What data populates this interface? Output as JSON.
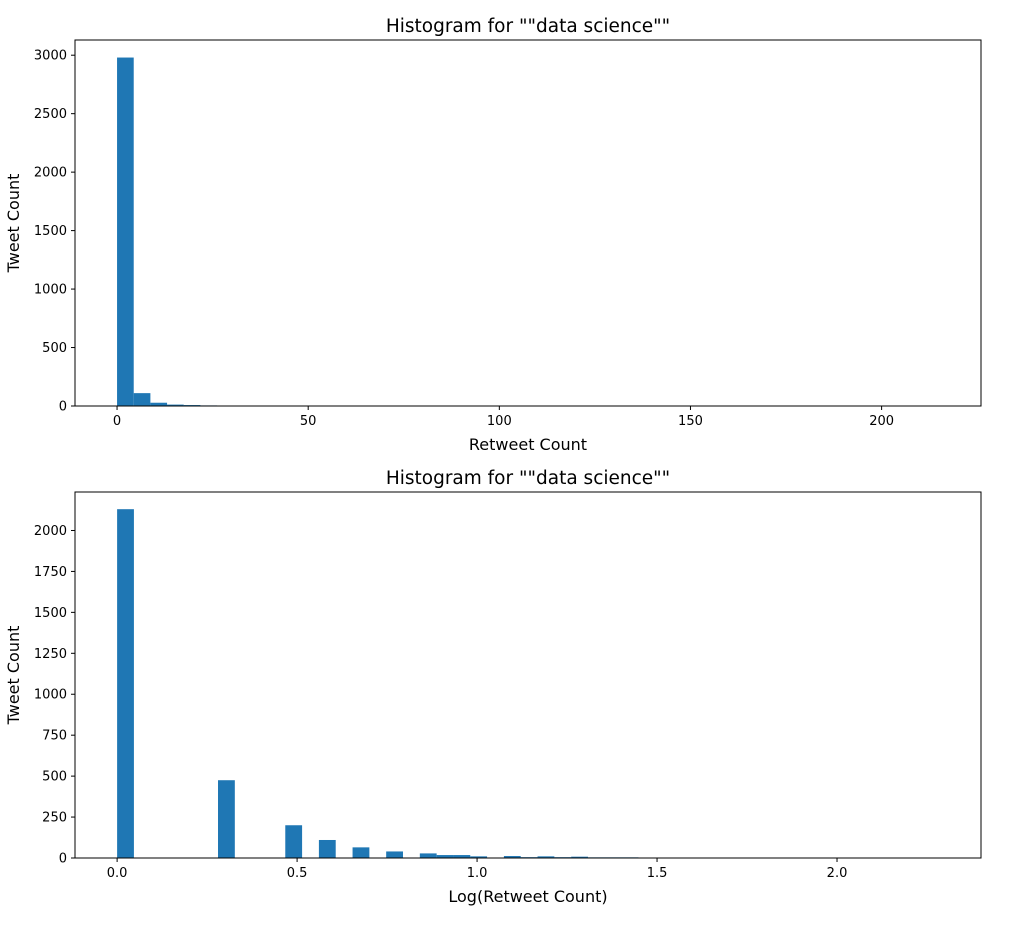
{
  "chart_data": [
    {
      "type": "bar",
      "title": "Histogram for \"\"data science\"\"",
      "xlabel": "Retweet Count",
      "ylabel": "Tweet Count",
      "xlim": [
        -11,
        226
      ],
      "ylim": [
        0,
        3130
      ],
      "xticks": [
        0,
        50,
        100,
        150,
        200
      ],
      "yticks": [
        0,
        500,
        1000,
        1500,
        2000,
        2500,
        3000
      ],
      "bin_width": 4.36,
      "grid": false,
      "color": "#1f77b4",
      "bars": [
        {
          "x0": 0,
          "value": 2980
        },
        {
          "x0": 4.36,
          "value": 110
        },
        {
          "x0": 8.72,
          "value": 28
        },
        {
          "x0": 13.08,
          "value": 12
        },
        {
          "x0": 17.44,
          "value": 8
        },
        {
          "x0": 21.8,
          "value": 5
        },
        {
          "x0": 26.16,
          "value": 3
        },
        {
          "x0": 30.52,
          "value": 2
        },
        {
          "x0": 34.88,
          "value": 1
        },
        {
          "x0": 39.24,
          "value": 1
        },
        {
          "x0": 43.6,
          "value": 1
        },
        {
          "x0": 61.04,
          "value": 1
        },
        {
          "x0": 213.64,
          "value": 1
        }
      ]
    },
    {
      "type": "bar",
      "title": "Histogram for \"\"data science\"\"",
      "xlabel": "Log(Retweet Count)",
      "ylabel": "Tweet Count",
      "xlim": [
        -0.117,
        2.4
      ],
      "ylim": [
        0,
        2235
      ],
      "xticks": [
        "0.0",
        "0.5",
        "1.0",
        "1.5",
        "2.0"
      ],
      "yticks": [
        0,
        250,
        500,
        750,
        1000,
        1250,
        1500,
        1750,
        2000
      ],
      "bin_width": 0.0467,
      "grid": false,
      "color": "#1f77b4",
      "bars": [
        {
          "x0": 0,
          "value": 2130
        },
        {
          "x0": 0.2803,
          "value": 475
        },
        {
          "x0": 0.4672,
          "value": 200
        },
        {
          "x0": 0.5606,
          "value": 110
        },
        {
          "x0": 0.6541,
          "value": 65
        },
        {
          "x0": 0.7475,
          "value": 40
        },
        {
          "x0": 0.841,
          "value": 28
        },
        {
          "x0": 0.8877,
          "value": 18
        },
        {
          "x0": 0.9344,
          "value": 18
        },
        {
          "x0": 0.9811,
          "value": 10
        },
        {
          "x0": 1.0746,
          "value": 12
        },
        {
          "x0": 1.1213,
          "value": 5
        },
        {
          "x0": 1.168,
          "value": 10
        },
        {
          "x0": 1.2147,
          "value": 5
        },
        {
          "x0": 1.2614,
          "value": 8
        },
        {
          "x0": 1.3082,
          "value": 4
        },
        {
          "x0": 1.3549,
          "value": 4
        },
        {
          "x0": 1.4016,
          "value": 4
        },
        {
          "x0": 1.4483,
          "value": 3
        },
        {
          "x0": 1.495,
          "value": 3
        },
        {
          "x0": 1.5418,
          "value": 3
        },
        {
          "x0": 1.5885,
          "value": 3
        },
        {
          "x0": 1.6352,
          "value": 2
        },
        {
          "x0": 1.6819,
          "value": 2
        },
        {
          "x0": 1.7286,
          "value": 2
        },
        {
          "x0": 1.8688,
          "value": 3
        },
        {
          "x0": 1.9622,
          "value": 3
        },
        {
          "x0": 2.2893,
          "value": 3
        }
      ]
    }
  ]
}
